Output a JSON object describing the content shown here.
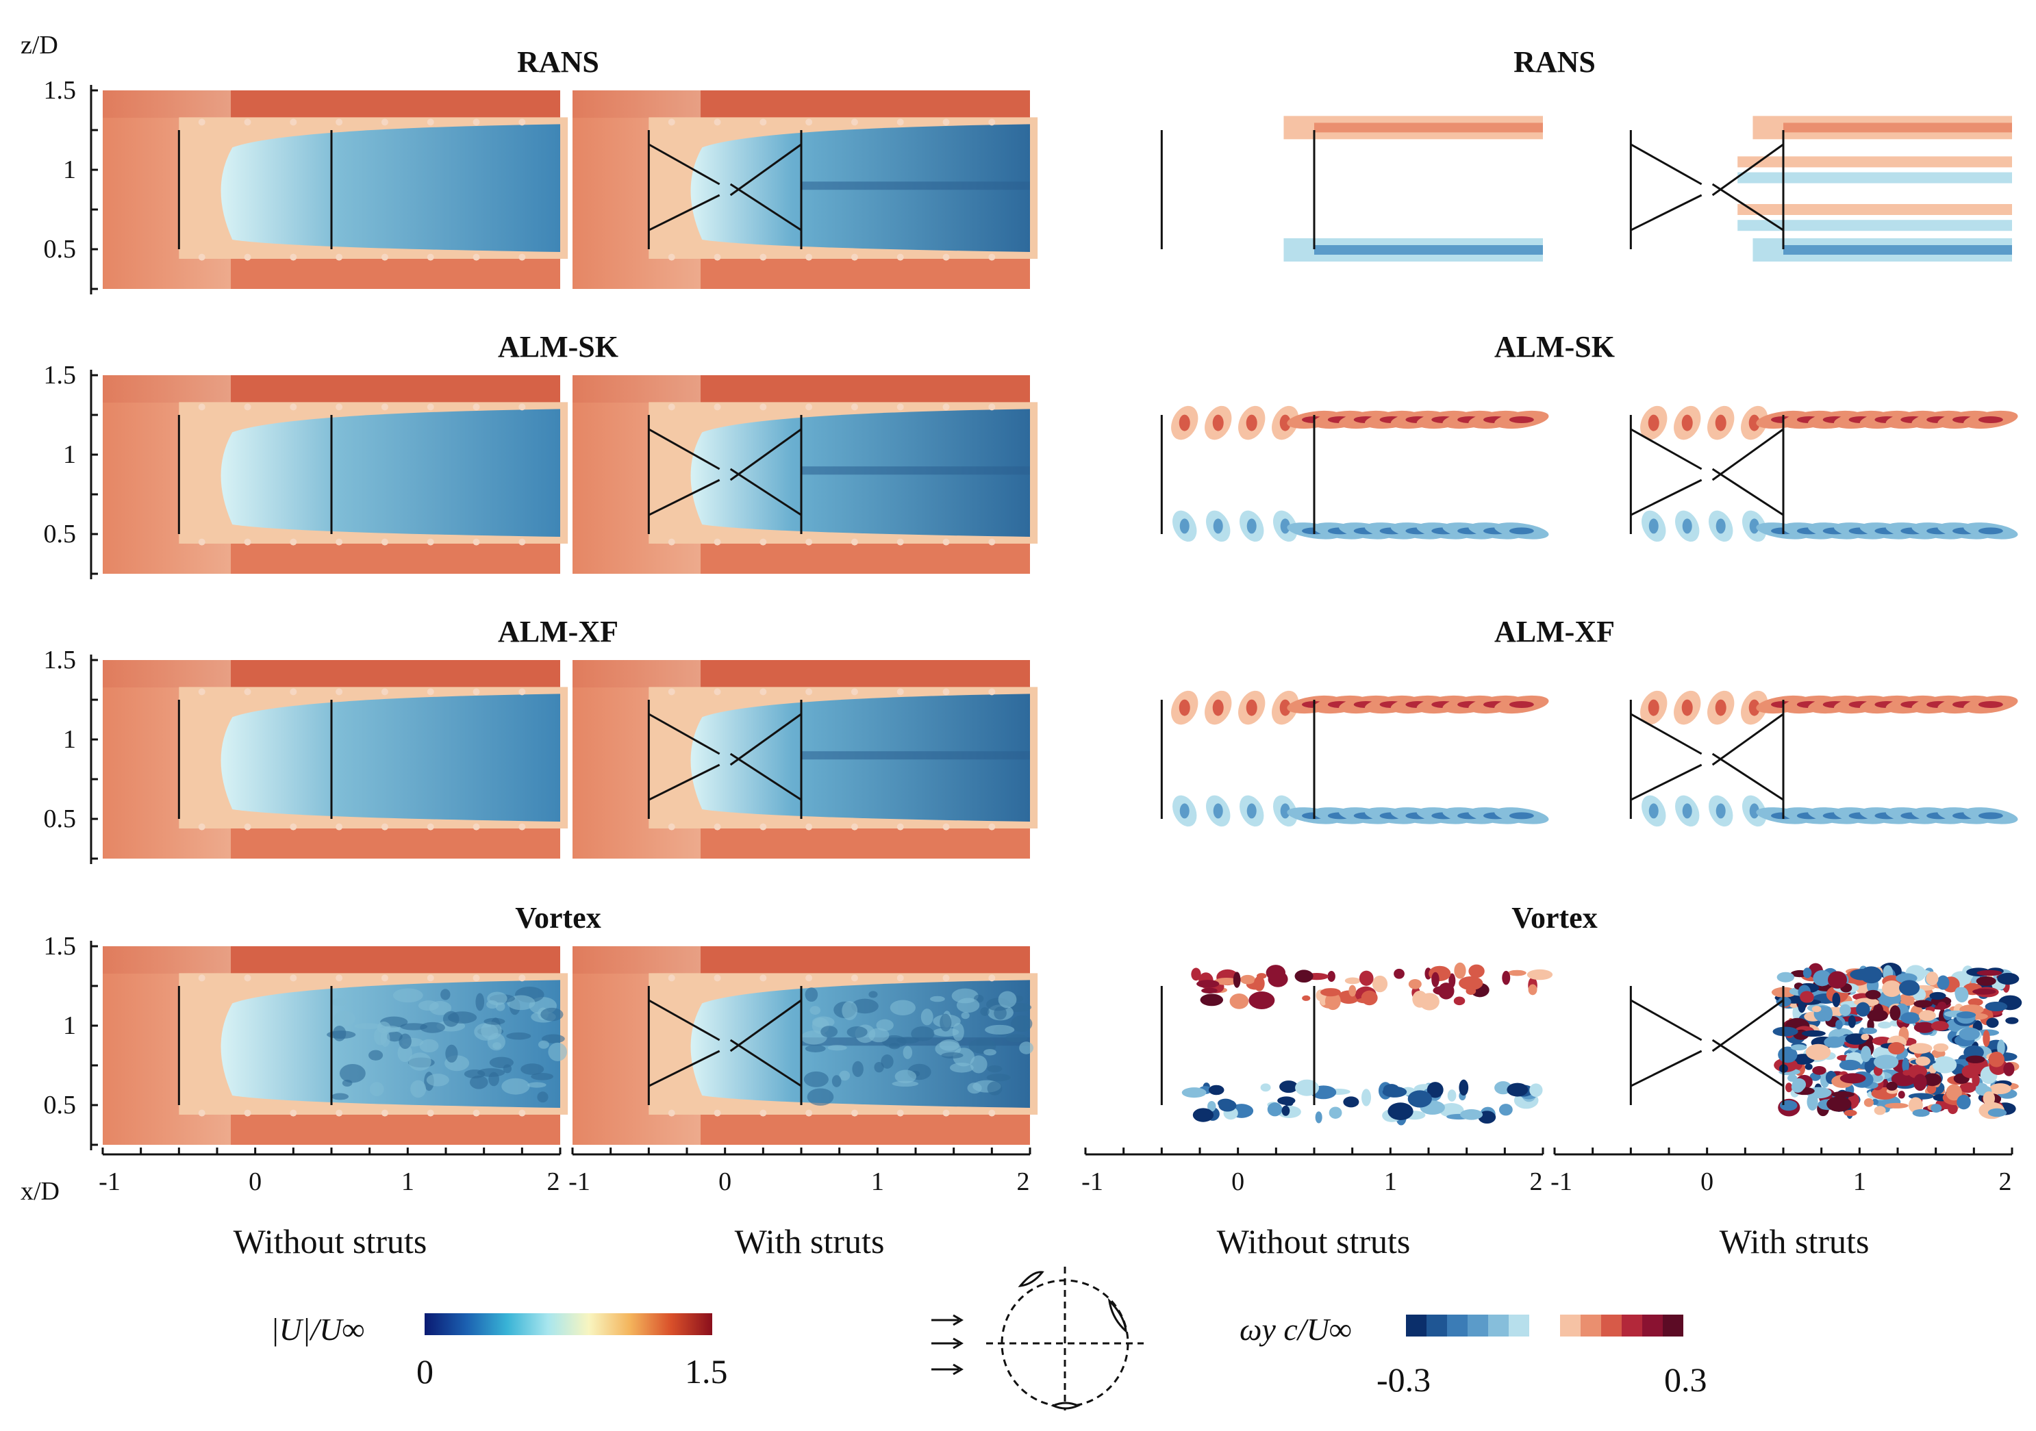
{
  "chart_data": {
    "type": "heatmap",
    "description_labels": {
      "z_axis_label": "z/D",
      "x_axis_label": "x/D"
    },
    "rows": [
      {
        "title_velocity": "RANS",
        "title_vorticity": "RANS"
      },
      {
        "title_velocity": "ALM-SK",
        "title_vorticity": "ALM-SK"
      },
      {
        "title_velocity": "ALM-XF",
        "title_vorticity": "ALM-XF"
      },
      {
        "title_velocity": "Vortex",
        "title_vorticity": "Vortex"
      }
    ],
    "z_ticks": [
      "1.5",
      "1",
      "0.5"
    ],
    "z_tick_values": [
      1.5,
      1.0,
      0.5
    ],
    "z_range": [
      0.25,
      1.5
    ],
    "x_ticks": [
      "-1",
      "0",
      "1",
      "2"
    ],
    "x_tick_values": [
      -1,
      0,
      1,
      2
    ],
    "x_range": [
      -1,
      2
    ],
    "column_captions": [
      "Without struts",
      "With struts",
      "Without struts",
      "With struts"
    ],
    "turbine_extent": {
      "x": [
        -0.5,
        0.5
      ],
      "z": [
        0.5,
        1.25
      ]
    },
    "velocity_colorbar": {
      "label": "|U|/U∞",
      "min_label": "0",
      "max_label": "1.5",
      "range": [
        0,
        1.5
      ],
      "colors": [
        "#0a1a72",
        "#1b5fb0",
        "#38b3d6",
        "#a8e6ee",
        "#f8f5c0",
        "#f4b45c",
        "#d9502a",
        "#8a0f1c"
      ]
    },
    "vorticity_colorbar": {
      "label": "ωy c/U∞",
      "min_label": "-0.3",
      "max_label": "0.3",
      "range": [
        -0.3,
        0.3
      ],
      "negative_colors": [
        "#0b2f6b",
        "#1f5694",
        "#3b7cb6",
        "#5b9bc9",
        "#86bedb",
        "#b7dfec"
      ],
      "positive_colors": [
        "#f6c2a4",
        "#ea8f6f",
        "#d75a48",
        "#b3283a",
        "#8a1231",
        "#5c0b25"
      ]
    },
    "field_colors": {
      "freestream": "#e27a5a",
      "freestream_edge": "#d2583f",
      "wake_core": "#4d92bd",
      "wake_deep": "#33709f",
      "wake_light": "#bfe6ef",
      "shear": "#f4c9a6",
      "white": "#ffffff"
    }
  }
}
